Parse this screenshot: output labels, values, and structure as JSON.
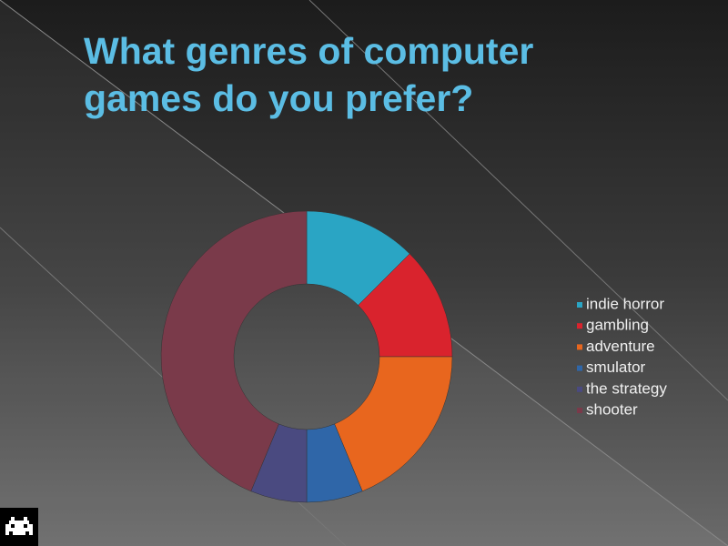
{
  "chart_data": {
    "type": "donut",
    "title": "What genres of computer games do you prefer?",
    "categories": [
      "indie horror",
      "gambling",
      "adventure",
      "smulator",
      "the strategy",
      "shooter"
    ],
    "values": [
      2,
      2,
      3,
      1,
      1,
      7
    ],
    "colors": [
      "#2aa5c4",
      "#d9232d",
      "#e8661e",
      "#2f66a8",
      "#4a4a80",
      "#7a3a4a"
    ],
    "legend": "right"
  }
}
